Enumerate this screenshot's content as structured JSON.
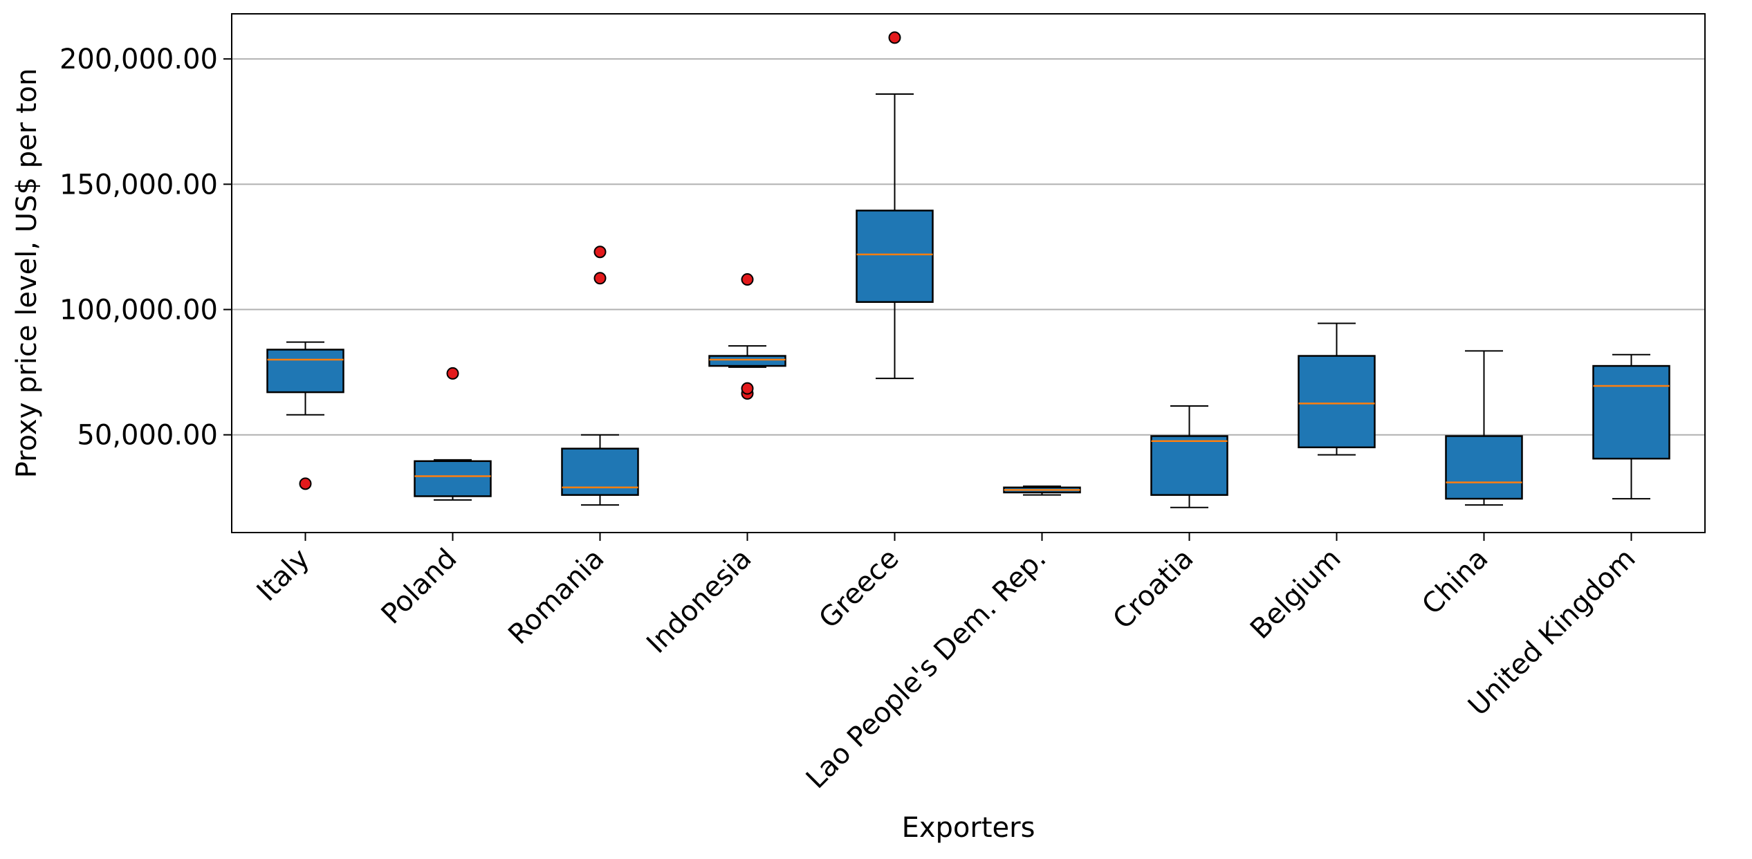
{
  "chart_data": {
    "type": "box",
    "xlabel": "Exporters",
    "ylabel": "Proxy price level, US$ per ton",
    "ylim": [
      11000,
      218000
    ],
    "yticks": [
      {
        "value": 50000,
        "label": "50,000.00"
      },
      {
        "value": 100000,
        "label": "100,000.00"
      },
      {
        "value": 150000,
        "label": "150,000.00"
      },
      {
        "value": 200000,
        "label": "200,000.00"
      }
    ],
    "grid": "y",
    "colors": {
      "box_fill": "#1f77b4",
      "median": "#ff7f0e",
      "outlier": "#e31a1c",
      "grid": "#b0b0b0"
    },
    "boxes": [
      {
        "category": "Italy",
        "whisker_low": 58000,
        "q1": 67000,
        "median": 80000,
        "q3": 84000,
        "whisker_high": 87000,
        "outliers": [
          30500
        ]
      },
      {
        "category": "Poland",
        "whisker_low": 24000,
        "q1": 25500,
        "median": 33500,
        "q3": 39500,
        "whisker_high": 40000,
        "outliers": [
          74500
        ]
      },
      {
        "category": "Romania",
        "whisker_low": 22000,
        "q1": 26000,
        "median": 29000,
        "q3": 44500,
        "whisker_high": 50000,
        "outliers": [
          112500,
          123000
        ]
      },
      {
        "category": "Indonesia",
        "whisker_low": 77000,
        "q1": 77500,
        "median": 80000,
        "q3": 81500,
        "whisker_high": 85500,
        "outliers": [
          112000,
          66500,
          68500
        ]
      },
      {
        "category": "Greece",
        "whisker_low": 72500,
        "q1": 103000,
        "median": 122000,
        "q3": 139500,
        "whisker_high": 186000,
        "outliers": [
          208500
        ]
      },
      {
        "category": "Lao People's Dem. Rep.",
        "whisker_low": 26000,
        "q1": 27000,
        "median": 28000,
        "q3": 29000,
        "whisker_high": 29500,
        "outliers": []
      },
      {
        "category": "Croatia",
        "whisker_low": 21000,
        "q1": 26000,
        "median": 47500,
        "q3": 49500,
        "whisker_high": 61500,
        "outliers": []
      },
      {
        "category": "Belgium",
        "whisker_low": 42000,
        "q1": 45000,
        "median": 62500,
        "q3": 81500,
        "whisker_high": 94500,
        "outliers": []
      },
      {
        "category": "China",
        "whisker_low": 22000,
        "q1": 24500,
        "median": 31000,
        "q3": 49500,
        "whisker_high": 83500,
        "outliers": []
      },
      {
        "category": "United Kingdom",
        "whisker_low": 24500,
        "q1": 40500,
        "median": 69500,
        "q3": 77500,
        "whisker_high": 82000,
        "outliers": []
      }
    ]
  }
}
